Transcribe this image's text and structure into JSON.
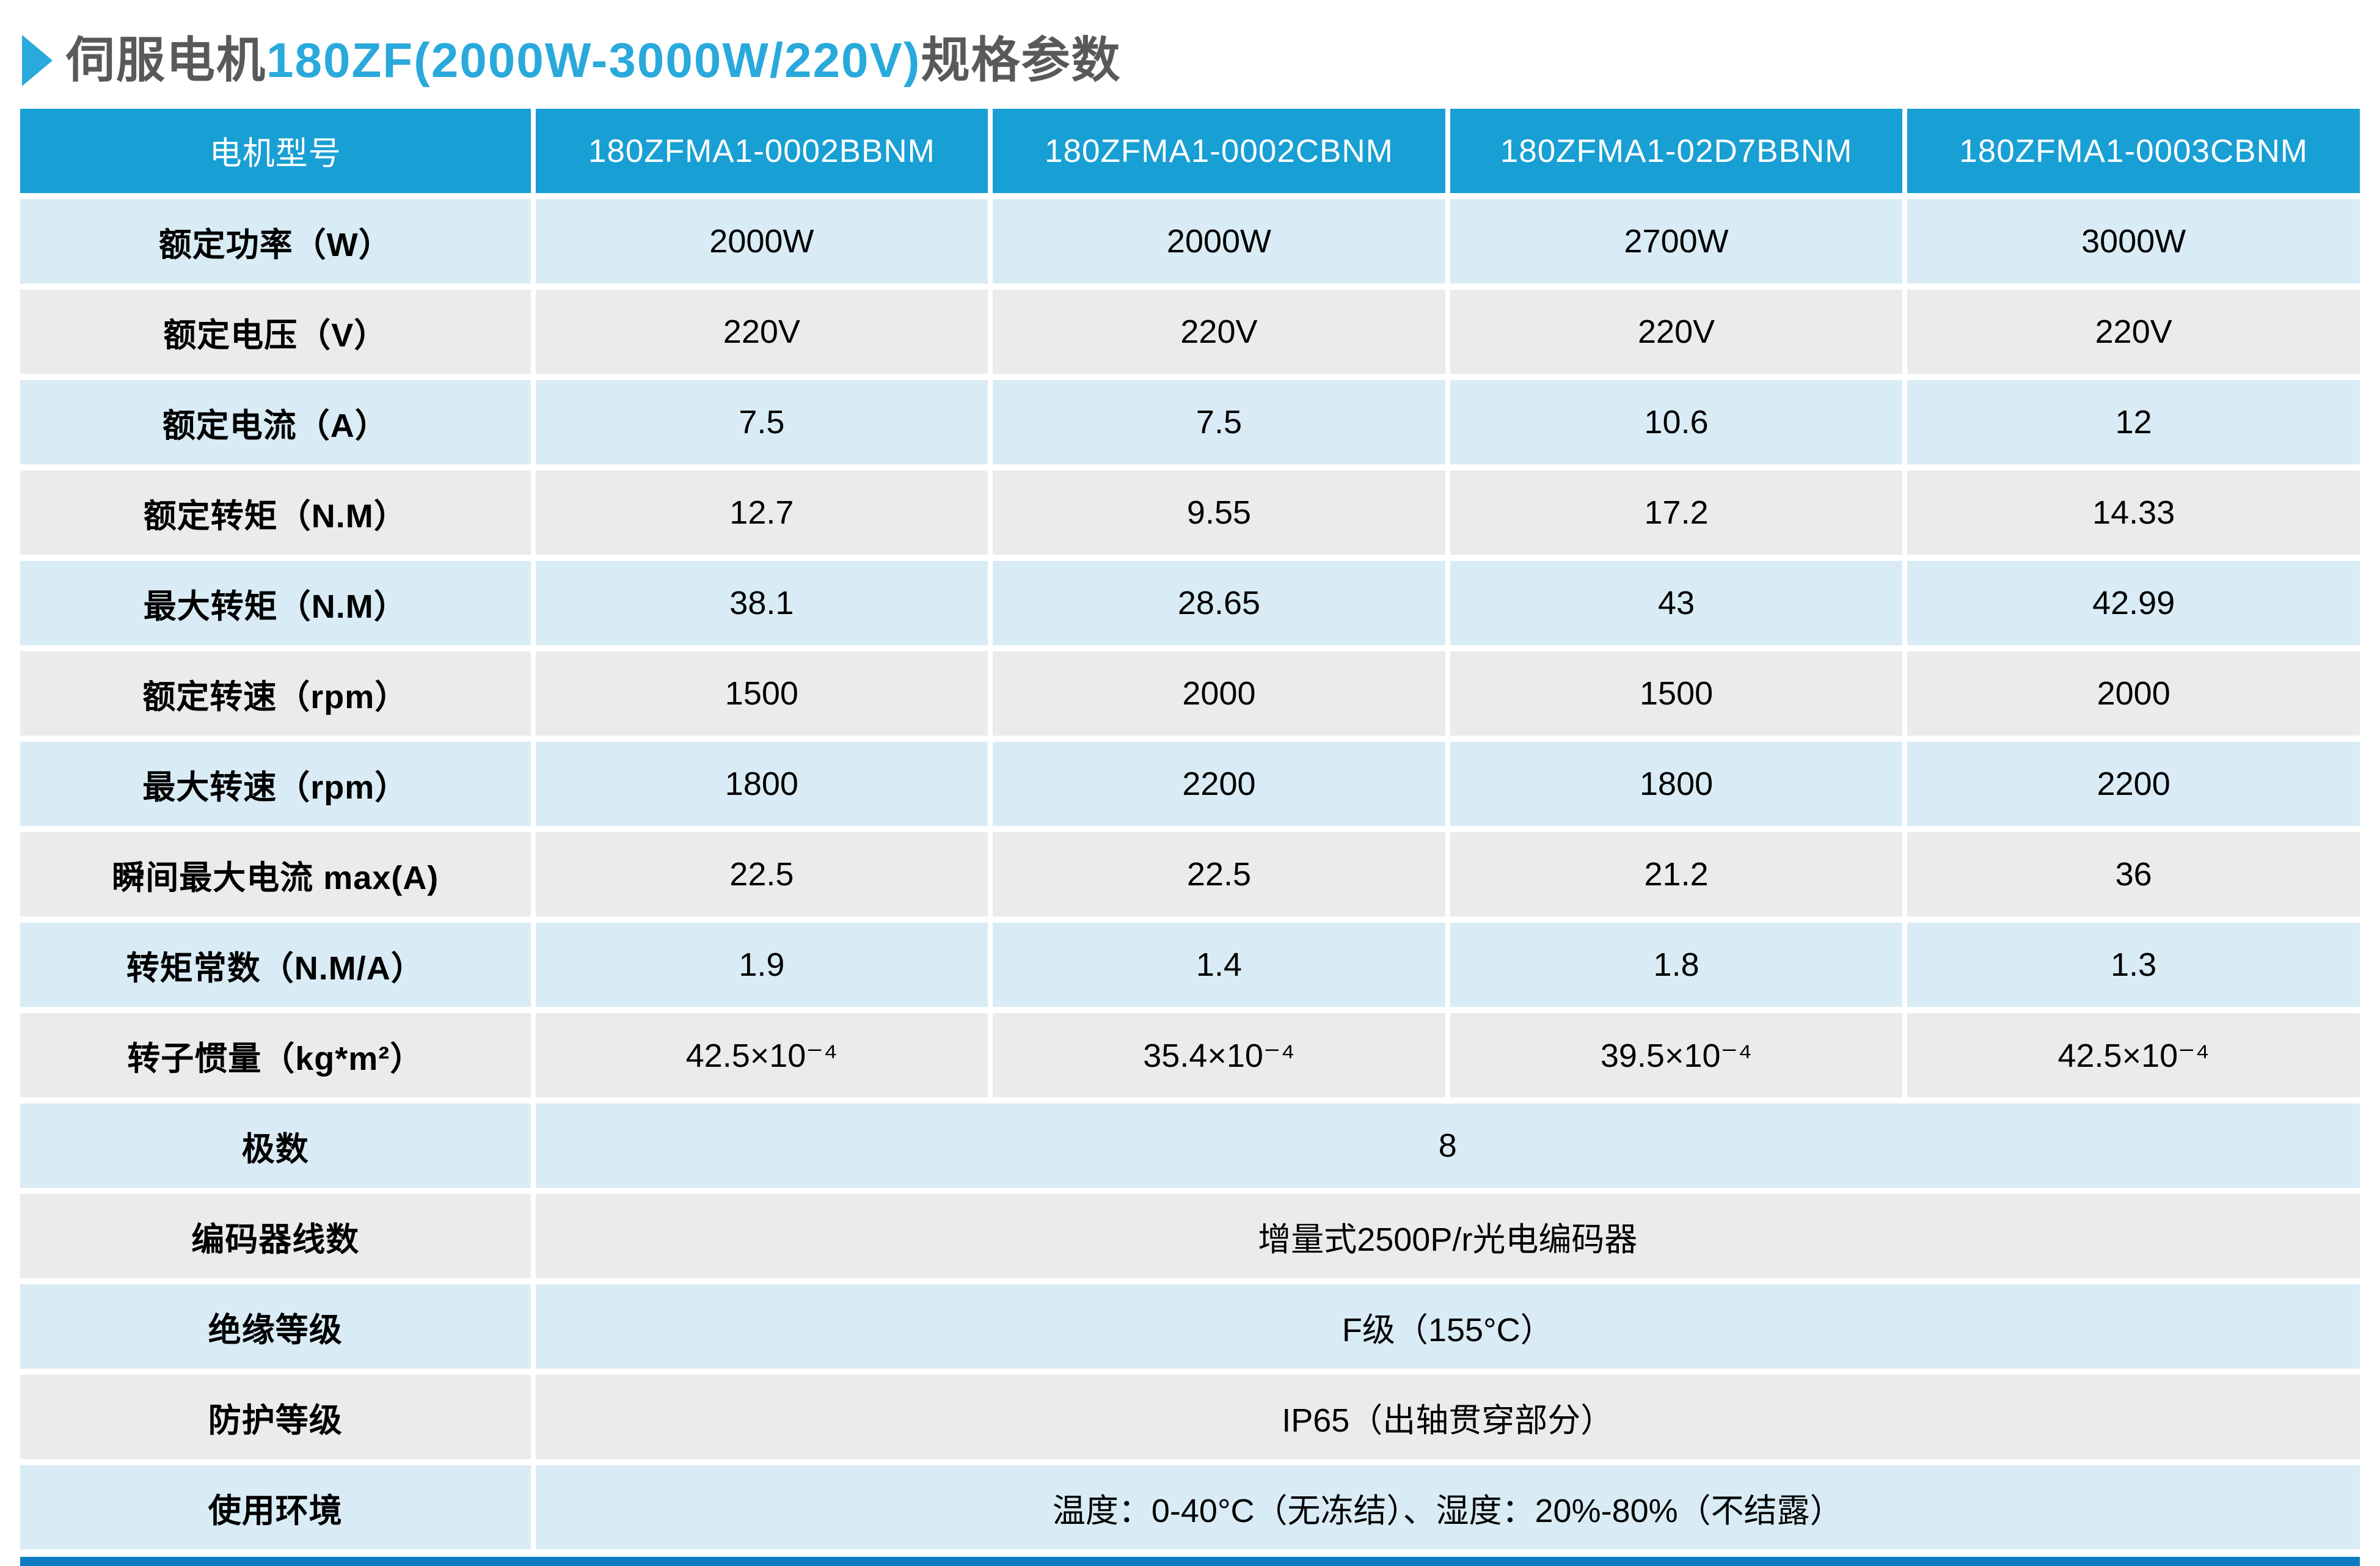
{
  "title": {
    "prefix": "伺服电机",
    "highlight": "180ZF(2000W-3000W/220V)",
    "suffix": "规格参数"
  },
  "colors": {
    "header_bg": "#189fd4",
    "row_blue": "#d9ecf5",
    "row_gray": "#ebebeb",
    "accent_bar": "#0b7cc1",
    "title_accent": "#29a9dc",
    "title_text": "#58595b"
  },
  "table": {
    "corner_label": "电机型号",
    "models": [
      "180ZFMA1-0002BBNM",
      "180ZFMA1-0002CBNM",
      "180ZFMA1-02D7BBNM",
      "180ZFMA1-0003CBNM"
    ],
    "rows": [
      {
        "label": "额定功率（W）",
        "values": [
          "2000W",
          "2000W",
          "2700W",
          "3000W"
        ]
      },
      {
        "label": "额定电压（V）",
        "values": [
          "220V",
          "220V",
          "220V",
          "220V"
        ]
      },
      {
        "label": "额定电流（A）",
        "values": [
          "7.5",
          "7.5",
          "10.6",
          "12"
        ]
      },
      {
        "label": "额定转矩（N.M）",
        "values": [
          "12.7",
          "9.55",
          "17.2",
          "14.33"
        ]
      },
      {
        "label": "最大转矩（N.M）",
        "values": [
          "38.1",
          "28.65",
          "43",
          "42.99"
        ]
      },
      {
        "label": "额定转速（rpm）",
        "values": [
          "1500",
          "2000",
          "1500",
          "2000"
        ]
      },
      {
        "label": "最大转速（rpm）",
        "values": [
          "1800",
          "2200",
          "1800",
          "2200"
        ]
      },
      {
        "label": "瞬间最大电流 max(A)",
        "values": [
          "22.5",
          "22.5",
          "21.2",
          "36"
        ]
      },
      {
        "label": "转矩常数（N.M/A）",
        "values": [
          "1.9",
          "1.4",
          "1.8",
          "1.3"
        ]
      },
      {
        "label": "转子惯量（kg*m²）",
        "values": [
          "42.5×10⁻⁴",
          "35.4×10⁻⁴",
          "39.5×10⁻⁴",
          "42.5×10⁻⁴"
        ]
      }
    ],
    "span_rows": [
      {
        "label": "极数",
        "value": "8"
      },
      {
        "label": "编码器线数",
        "value": "增量式2500P/r光电编码器"
      },
      {
        "label": "绝缘等级",
        "value": "F级（155°C）"
      },
      {
        "label": "防护等级",
        "value": "IP65（出轴贯穿部分）"
      },
      {
        "label": "使用环境",
        "value": "温度：0-40°C（无冻结）、湿度：20%-80%（不结露）"
      }
    ]
  }
}
